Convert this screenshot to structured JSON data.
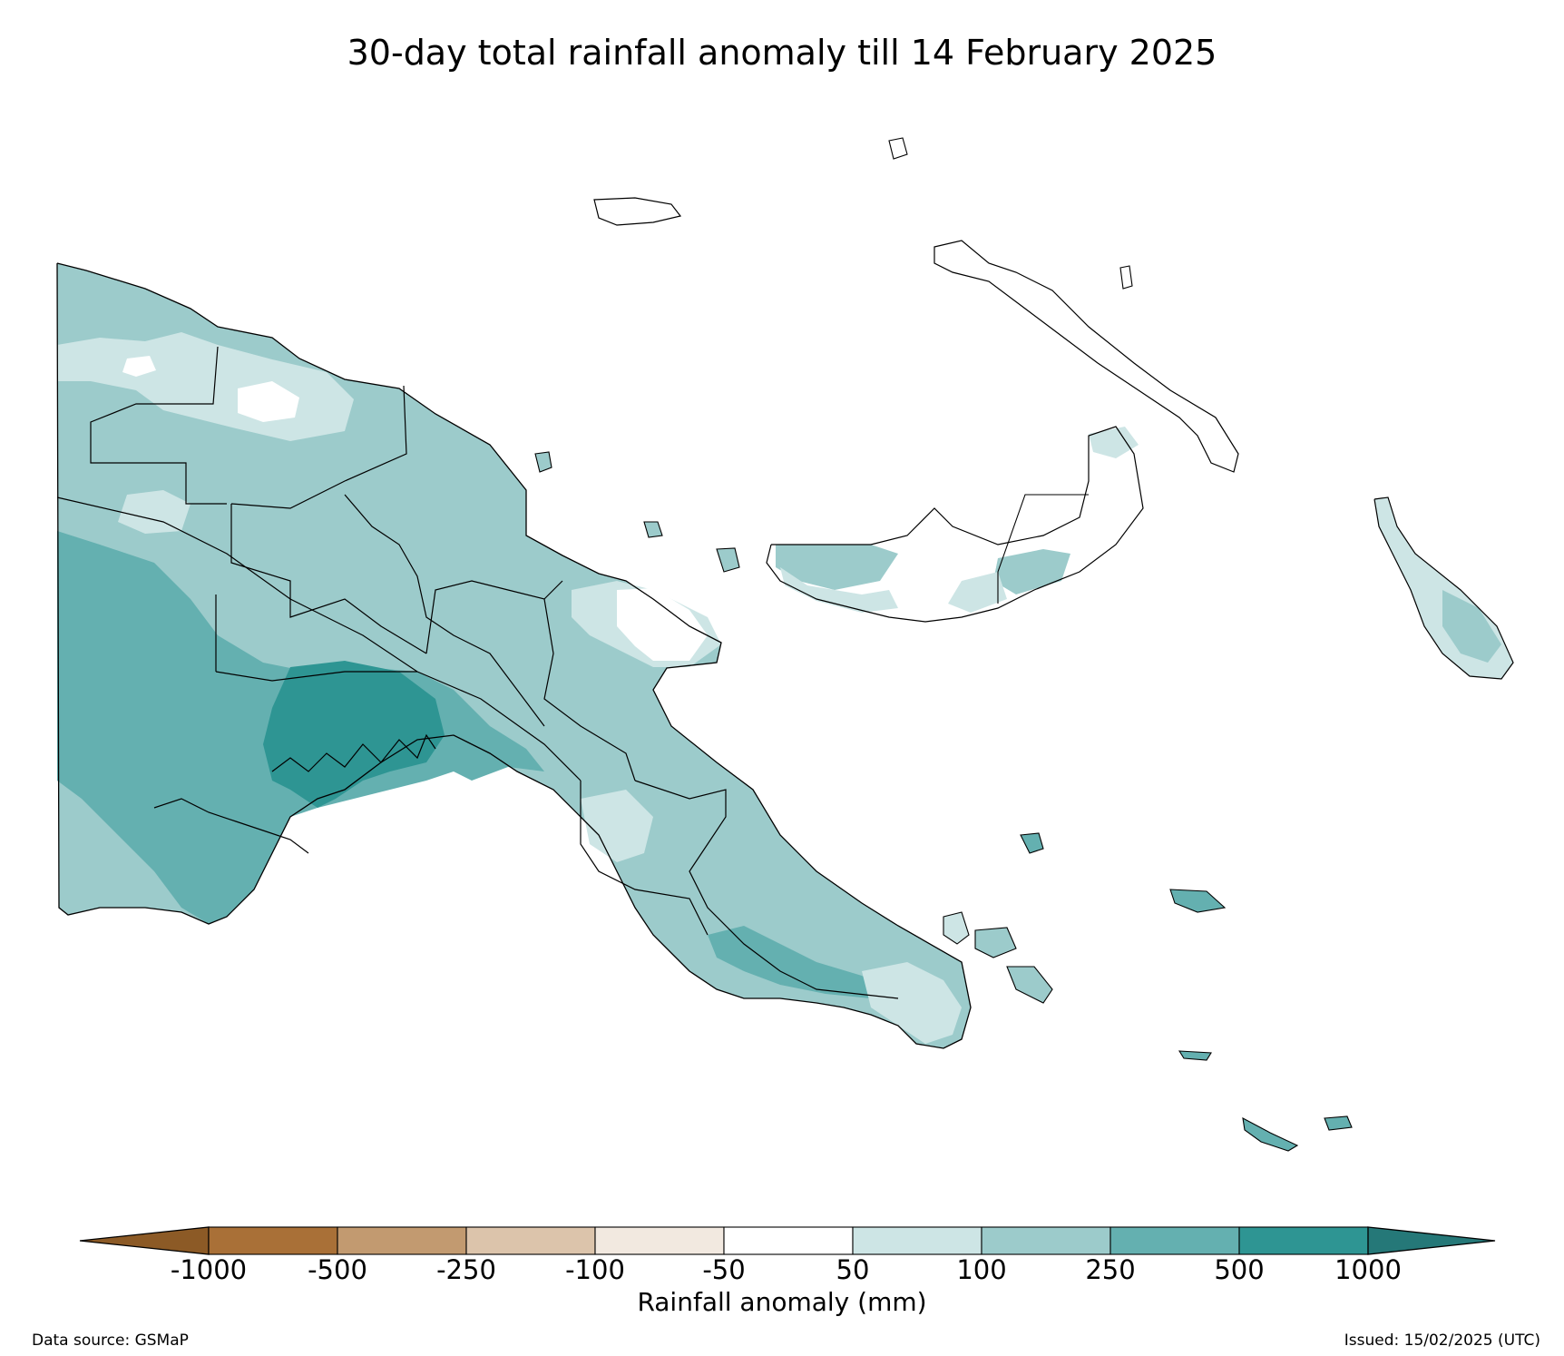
{
  "title": "30-day total rainfall anomaly till 14 February 2025",
  "colorbar": {
    "label": "Rainfall anomaly (mm)",
    "ticks": [
      "-1000",
      "-500",
      "-250",
      "-100",
      "-50",
      "50",
      "100",
      "250",
      "500",
      "1000"
    ],
    "colors": {
      "below_min": "#8c5a26",
      "bins": [
        "#a97037",
        "#c29a70",
        "#dcc4ab",
        "#f2e9e0",
        "#ffffff",
        "#cde5e5",
        "#9ccbcb",
        "#64b0b0",
        "#2e9593"
      ],
      "above_max": "#257878"
    }
  },
  "legend_levels": {
    "very_high": "#2e9593",
    "high": "#64b0b0",
    "moderate": "#9ccbcb",
    "low": "#cde5e5",
    "neutral": "#ffffff"
  },
  "footer": {
    "source": "Data source: GSMaP",
    "issued": "Issued: 15/02/2025 (UTC)"
  }
}
